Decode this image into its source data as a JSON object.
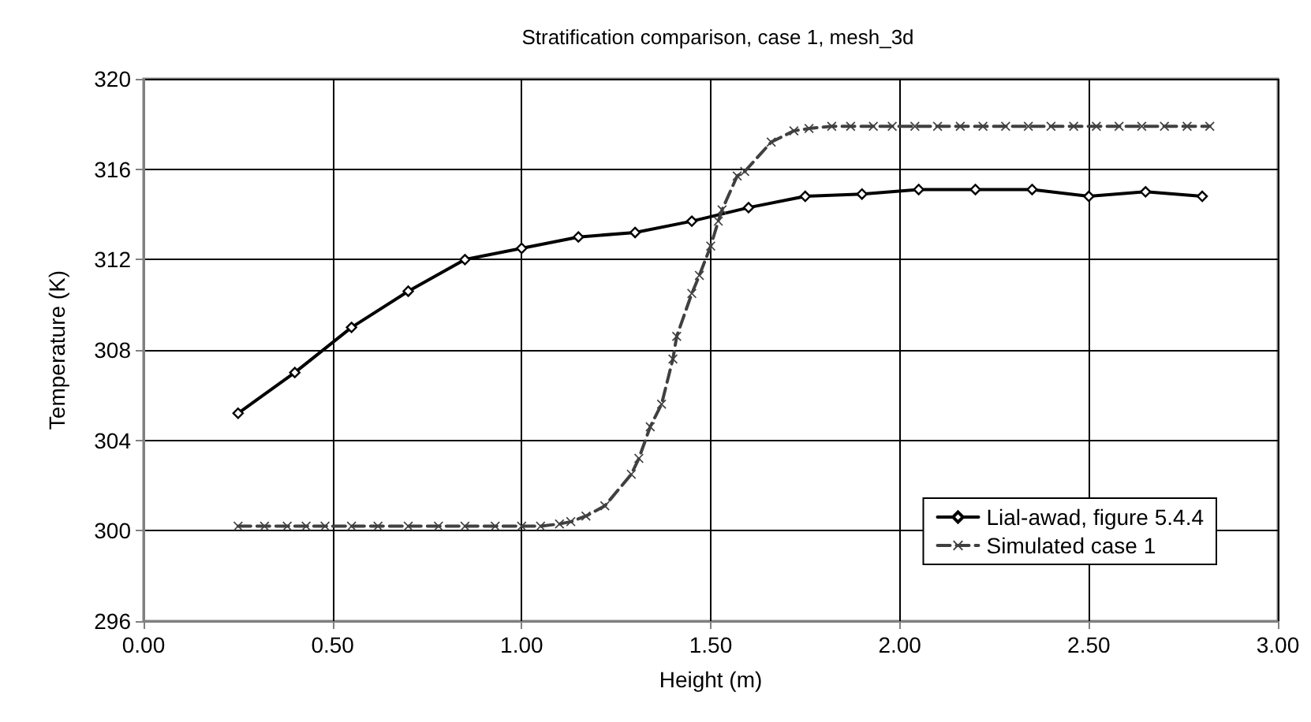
{
  "chart_data": {
    "type": "line",
    "title": "Stratification comparison, case 1, mesh_3d",
    "xlabel": "Height (m)",
    "ylabel": "Temperature (K)",
    "xlim": [
      0,
      3
    ],
    "xticks": [
      {
        "value": 0,
        "label": "0.00"
      },
      {
        "value": 0.5,
        "label": "0.50"
      },
      {
        "value": 1,
        "label": "1.00"
      },
      {
        "value": 1.5,
        "label": "1.50"
      },
      {
        "value": 2,
        "label": "2.00"
      },
      {
        "value": 2.5,
        "label": "2.50"
      },
      {
        "value": 3,
        "label": "3.00"
      }
    ],
    "ylim": [
      296,
      320
    ],
    "yticks": [
      296,
      300,
      304,
      308,
      312,
      316,
      320
    ],
    "grid": true,
    "legend": "bottom right",
    "series": [
      {
        "name": "Lial-awad, figure 5.4.4",
        "color": "#000000",
        "marker": "diamond",
        "line_style": "solid",
        "x": [
          0.25,
          0.4,
          0.55,
          0.7,
          0.85,
          1.0,
          1.15,
          1.3,
          1.45,
          1.6,
          1.75,
          1.9,
          2.05,
          2.2,
          2.35,
          2.5,
          2.65,
          2.8
        ],
        "values": [
          305.2,
          307.0,
          309.0,
          310.6,
          312.0,
          312.5,
          313.0,
          313.2,
          313.7,
          314.3,
          314.8,
          314.9,
          315.1,
          315.1,
          315.1,
          314.8,
          315.0,
          314.8
        ]
      },
      {
        "name": "Simulated case 1",
        "color": "#404040",
        "marker": "cross",
        "line_style": "dashed",
        "x": [
          0.25,
          0.32,
          0.38,
          0.43,
          0.48,
          0.55,
          0.62,
          0.7,
          0.78,
          0.85,
          0.93,
          1.0,
          1.05,
          1.1,
          1.13,
          1.17,
          1.22,
          1.29,
          1.31,
          1.34,
          1.37,
          1.4,
          1.41,
          1.45,
          1.47,
          1.5,
          1.52,
          1.53,
          1.57,
          1.59,
          1.66,
          1.72,
          1.76,
          1.82,
          1.87,
          1.93,
          1.98,
          2.04,
          2.1,
          2.16,
          2.22,
          2.28,
          2.34,
          2.4,
          2.46,
          2.52,
          2.58,
          2.64,
          2.7,
          2.76,
          2.82
        ],
        "values": [
          300.2,
          300.2,
          300.2,
          300.2,
          300.2,
          300.2,
          300.2,
          300.2,
          300.2,
          300.2,
          300.2,
          300.2,
          300.2,
          300.3,
          300.4,
          300.65,
          301.1,
          302.5,
          303.2,
          304.6,
          305.6,
          307.6,
          308.6,
          310.5,
          311.3,
          312.6,
          313.7,
          314.2,
          315.7,
          315.9,
          317.2,
          317.7,
          317.8,
          317.9,
          317.9,
          317.9,
          317.9,
          317.9,
          317.9,
          317.9,
          317.9,
          317.9,
          317.9,
          317.9,
          317.9,
          317.9,
          317.9,
          317.9,
          317.9,
          317.9,
          317.9
        ]
      }
    ]
  }
}
